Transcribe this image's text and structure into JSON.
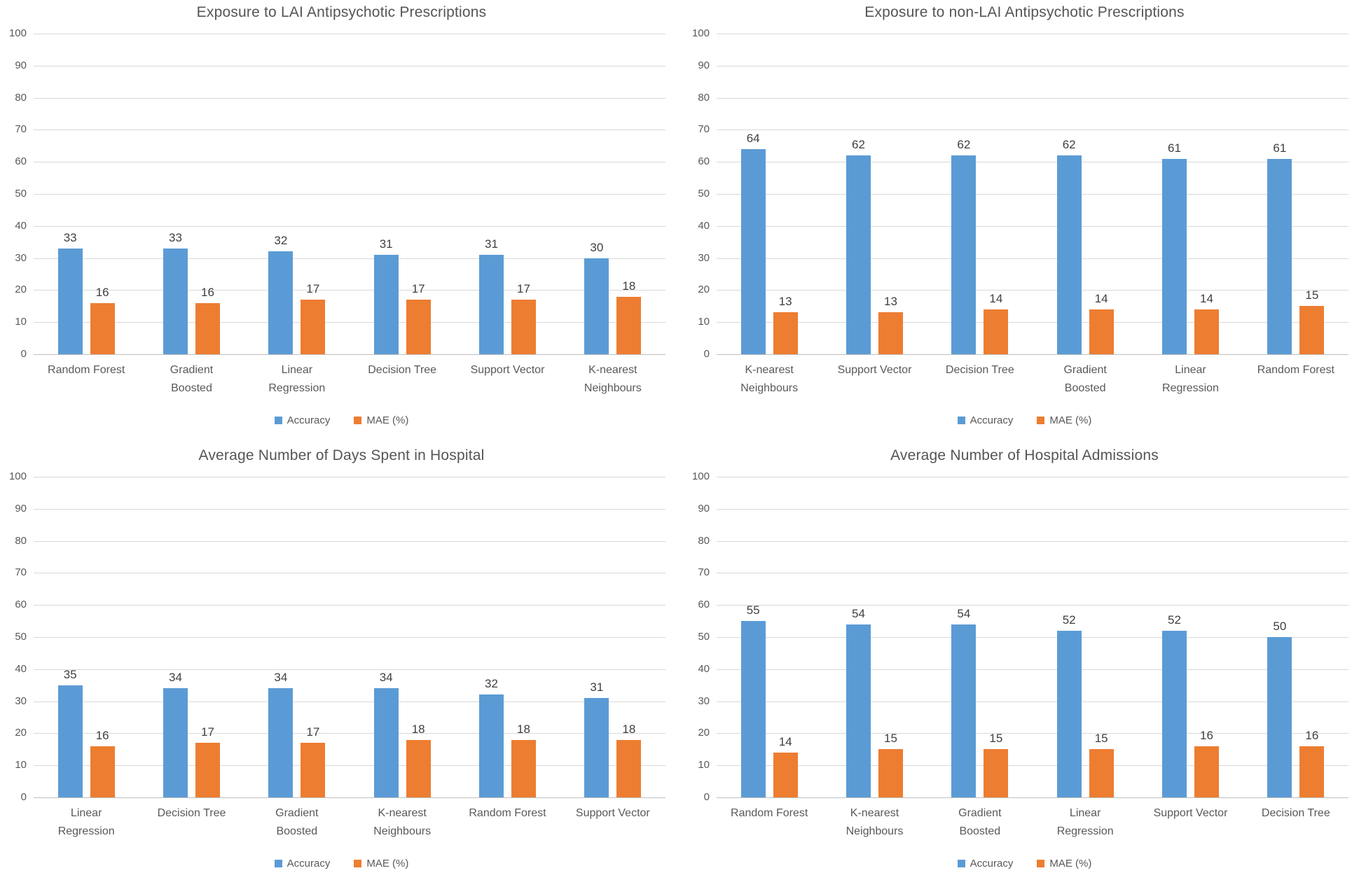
{
  "figure": {
    "background": "#ffffff",
    "series_colors": {
      "accuracy": "#5B9BD5",
      "mae": "#ED7D31"
    },
    "gridline_color": "#d9d9d9",
    "axis_line_color": "#bfbfbf",
    "text_color": "#595959",
    "value_label_color": "#3f3f3f"
  },
  "chart_data": [
    {
      "type": "bar",
      "title": "Exposure to LAI Antipsychotic Prescriptions",
      "categories": [
        "Random Forest",
        "Gradient Boosted",
        "Linear Regression",
        "Decision Tree",
        "Support Vector",
        "K-nearest Neighbours"
      ],
      "category_lines": [
        [
          "Random Forest"
        ],
        [
          "Gradient",
          "Boosted"
        ],
        [
          "Linear",
          "Regression"
        ],
        [
          "Decision Tree"
        ],
        [
          "Support Vector"
        ],
        [
          "K-nearest",
          "Neighbours"
        ]
      ],
      "series": [
        {
          "name": "Accuracy",
          "color": "#5B9BD5",
          "values": [
            33,
            33,
            32,
            31,
            31,
            30
          ]
        },
        {
          "name": "MAE (%)",
          "color": "#ED7D31",
          "values": [
            16,
            16,
            17,
            17,
            17,
            18
          ]
        }
      ],
      "xlabel": "",
      "ylabel": "",
      "ylim": [
        0,
        100
      ],
      "ytick_step": 10,
      "yticks": [
        0,
        10,
        20,
        30,
        40,
        50,
        60,
        70,
        80,
        90,
        100
      ],
      "grid": true,
      "legend_position": "bottom"
    },
    {
      "type": "bar",
      "title": "Exposure to non-LAI Antipsychotic Prescriptions",
      "categories": [
        "K-nearest Neighbours",
        "Support Vector",
        "Decision Tree",
        "Gradient Boosted",
        "Linear Regression",
        "Random Forest"
      ],
      "category_lines": [
        [
          "K-nearest",
          "Neighbours"
        ],
        [
          "Support Vector"
        ],
        [
          "Decision Tree"
        ],
        [
          "Gradient",
          "Boosted"
        ],
        [
          "Linear",
          "Regression"
        ],
        [
          "Random Forest"
        ]
      ],
      "series": [
        {
          "name": "Accuracy",
          "color": "#5B9BD5",
          "values": [
            64,
            62,
            62,
            62,
            61,
            61
          ]
        },
        {
          "name": "MAE (%)",
          "color": "#ED7D31",
          "values": [
            13,
            13,
            14,
            14,
            14,
            15
          ]
        }
      ],
      "xlabel": "",
      "ylabel": "",
      "ylim": [
        0,
        100
      ],
      "ytick_step": 10,
      "yticks": [
        0,
        10,
        20,
        30,
        40,
        50,
        60,
        70,
        80,
        90,
        100
      ],
      "grid": true,
      "legend_position": "bottom"
    },
    {
      "type": "bar",
      "title": "Average Number of Days Spent in Hospital",
      "categories": [
        "Linear Regression",
        "Decision Tree",
        "Gradient Boosted",
        "K-nearest Neighbours",
        "Random Forest",
        "Support Vector"
      ],
      "category_lines": [
        [
          "Linear",
          "Regression"
        ],
        [
          "Decision Tree"
        ],
        [
          "Gradient",
          "Boosted"
        ],
        [
          "K-nearest",
          "Neighbours"
        ],
        [
          "Random Forest"
        ],
        [
          "Support Vector"
        ]
      ],
      "series": [
        {
          "name": "Accuracy",
          "color": "#5B9BD5",
          "values": [
            35,
            34,
            34,
            34,
            32,
            31
          ]
        },
        {
          "name": "MAE (%)",
          "color": "#ED7D31",
          "values": [
            16,
            17,
            17,
            18,
            18,
            18
          ]
        }
      ],
      "xlabel": "",
      "ylabel": "",
      "ylim": [
        0,
        100
      ],
      "ytick_step": 10,
      "yticks": [
        0,
        10,
        20,
        30,
        40,
        50,
        60,
        70,
        80,
        90,
        100
      ],
      "grid": true,
      "legend_position": "bottom"
    },
    {
      "type": "bar",
      "title": "Average Number of Hospital Admissions",
      "categories": [
        "Random Forest",
        "K-nearest Neighbours",
        "Gradient Boosted",
        "Linear Regression",
        "Support Vector",
        "Decision Tree"
      ],
      "category_lines": [
        [
          "Random Forest"
        ],
        [
          "K-nearest",
          "Neighbours"
        ],
        [
          "Gradient",
          "Boosted"
        ],
        [
          "Linear",
          "Regression"
        ],
        [
          "Support Vector"
        ],
        [
          "Decision Tree"
        ]
      ],
      "series": [
        {
          "name": "Accuracy",
          "color": "#5B9BD5",
          "values": [
            55,
            54,
            54,
            52,
            52,
            50
          ]
        },
        {
          "name": "MAE (%)",
          "color": "#ED7D31",
          "values": [
            14,
            15,
            15,
            15,
            16,
            16
          ]
        }
      ],
      "xlabel": "",
      "ylabel": "",
      "ylim": [
        0,
        100
      ],
      "ytick_step": 10,
      "yticks": [
        0,
        10,
        20,
        30,
        40,
        50,
        60,
        70,
        80,
        90,
        100
      ],
      "grid": true,
      "legend_position": "bottom"
    }
  ]
}
